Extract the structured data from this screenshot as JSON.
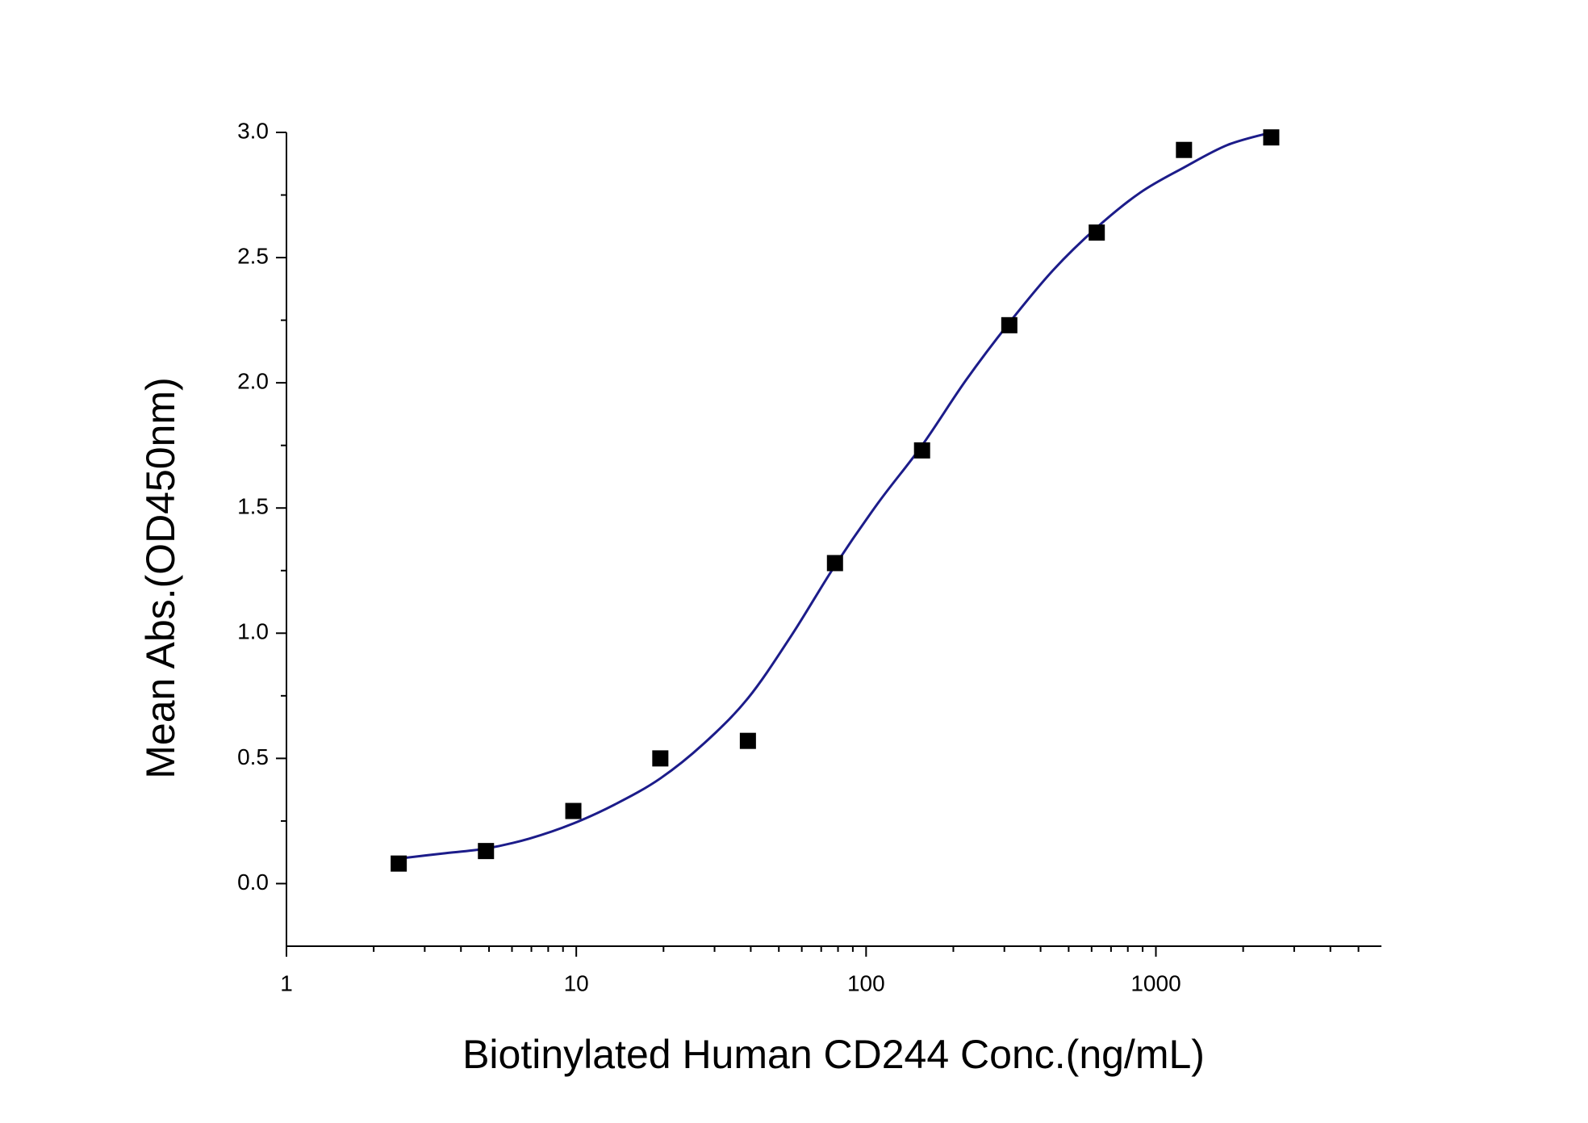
{
  "chart_data": {
    "type": "scatter",
    "x_label": "Biotinylated Human CD244 Conc.(ng/mL)",
    "y_label": "Mean Abs.(OD450nm)",
    "x_scale": "log",
    "xlim": [
      1,
      6000
    ],
    "xticks": [
      1,
      10,
      100,
      1000
    ],
    "xminorticks": [
      2,
      3,
      4,
      5,
      6,
      7,
      8,
      9,
      20,
      30,
      40,
      50,
      60,
      70,
      80,
      90,
      200,
      300,
      400,
      500,
      600,
      700,
      800,
      900,
      2000,
      3000,
      4000,
      5000
    ],
    "ylim": [
      -0.25,
      3.0
    ],
    "yticks": [
      {
        "value": 0,
        "label": "0.0"
      },
      0.5,
      {
        "value": 1,
        "label": "1.0"
      },
      1.5,
      {
        "value": 2,
        "label": "2.0"
      },
      2.5,
      {
        "value": 3,
        "label": "3.0"
      }
    ],
    "yminorticks": [
      0.25,
      0.75,
      1.25,
      1.75,
      2.25,
      2.75
    ],
    "series": [
      {
        "kind": "points",
        "color": "#000000",
        "x": [
          2.44,
          4.88,
          9.77,
          19.5,
          39.1,
          78.1,
          156,
          312,
          625,
          1250,
          2500
        ],
        "values": [
          0.08,
          0.13,
          0.29,
          0.5,
          0.57,
          1.28,
          1.73,
          2.23,
          2.6,
          2.93,
          2.98
        ]
      },
      {
        "kind": "fit",
        "color": "#1c1c8a",
        "x": [
          2.44,
          3.45,
          4.88,
          6.9,
          9.77,
          13.8,
          19.5,
          27.6,
          39.1,
          55.2,
          78.1,
          110,
          156,
          221,
          312,
          442,
          625,
          884,
          1250,
          1768,
          2500
        ],
        "values": [
          0.1,
          0.12,
          0.14,
          0.18,
          0.24,
          0.32,
          0.42,
          0.56,
          0.74,
          0.99,
          1.27,
          1.52,
          1.75,
          2.01,
          2.24,
          2.45,
          2.62,
          2.76,
          2.86,
          2.95,
          3.0
        ]
      }
    ]
  }
}
